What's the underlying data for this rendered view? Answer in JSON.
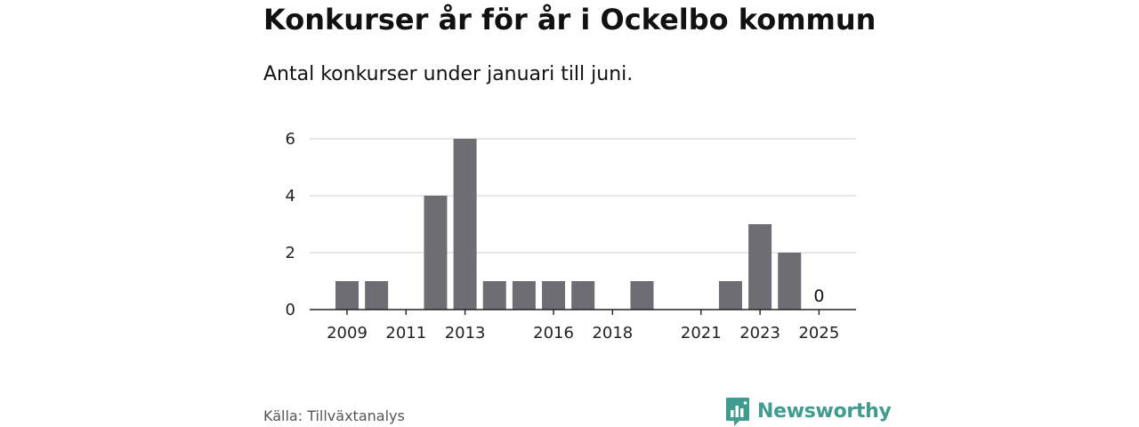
{
  "title": "Konkurser år för år i Ockelbo kommun",
  "subtitle": "Antal konkurser under januari till juni.",
  "source": "Källa: Tillväxtanalys",
  "brand": {
    "name": "Newsworthy",
    "icon": "newsworthy-logo-icon",
    "color": "#3f9c8f"
  },
  "chart_data": {
    "type": "bar",
    "categories": [
      "2009",
      "2010",
      "2011",
      "2012",
      "2013",
      "2014",
      "2015",
      "2016",
      "2017",
      "2018",
      "2019",
      "2020",
      "2021",
      "2022",
      "2023",
      "2024",
      "2025"
    ],
    "values": [
      1,
      1,
      0,
      4,
      6,
      1,
      1,
      1,
      1,
      0,
      1,
      0,
      0,
      1,
      3,
      2,
      0
    ],
    "x_tick_labels": [
      "2009",
      "2011",
      "2013",
      "2016",
      "2018",
      "2021",
      "2023",
      "2025"
    ],
    "y_ticks": [
      0,
      2,
      4,
      6
    ],
    "ylim": [
      0,
      6
    ],
    "grid": true,
    "bar_color": "#6e6d73",
    "data_labels": [
      {
        "category": "2025",
        "text": "0"
      }
    ],
    "title": "Konkurser år för år i Ockelbo kommun",
    "xlabel": "",
    "ylabel": ""
  }
}
